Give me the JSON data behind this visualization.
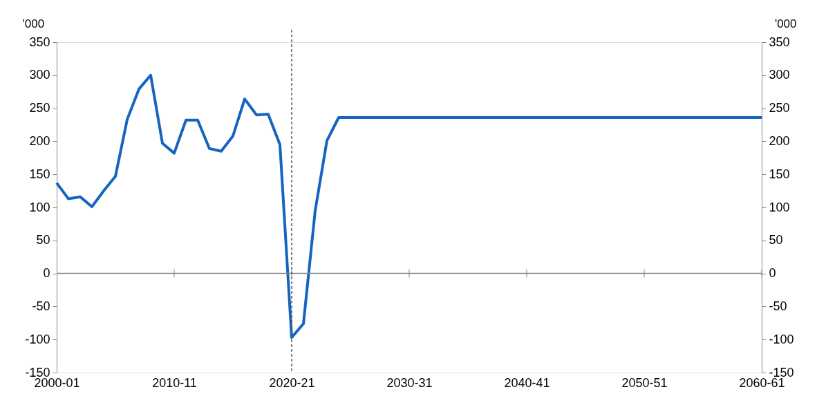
{
  "chart_data": {
    "type": "line",
    "categories": [
      "2000-01",
      null,
      null,
      null,
      null,
      null,
      null,
      null,
      null,
      null,
      "2010-11",
      null,
      null,
      null,
      null,
      null,
      null,
      null,
      null,
      null,
      "2020-21",
      null,
      null,
      null,
      null,
      null,
      null,
      null,
      null,
      null,
      "2030-31",
      null,
      null,
      null,
      null,
      null,
      null,
      null,
      null,
      null,
      "2040-41",
      null,
      null,
      null,
      null,
      null,
      null,
      null,
      null,
      null,
      "2050-51",
      null,
      null,
      null,
      null,
      null,
      null,
      null,
      null,
      null,
      "2060-61"
    ],
    "series": [
      {
        "color": "#1565c0",
        "values": [
          137,
          113,
          116,
          101,
          125,
          147,
          233,
          279,
          300,
          197,
          182,
          232,
          232,
          189,
          185,
          208,
          264,
          240,
          241,
          195,
          -97,
          -76,
          95,
          201,
          236,
          236,
          236,
          236,
          236,
          236,
          236,
          236,
          236,
          236,
          236,
          236,
          236,
          236,
          236,
          236,
          236,
          236,
          236,
          236,
          236,
          236,
          236,
          236,
          236,
          236,
          236,
          236,
          236,
          236,
          236,
          236,
          236,
          236,
          236,
          236,
          236
        ]
      }
    ],
    "ylabel": "'000",
    "y2label": "'000",
    "ylim": [
      -150,
      350
    ],
    "yticks": [
      -150,
      -100,
      -50,
      0,
      50,
      100,
      150,
      200,
      250,
      300,
      350
    ],
    "y2lim": [
      -150,
      350
    ],
    "y2ticks": [
      -150,
      -100,
      -50,
      0,
      50,
      100,
      150,
      200,
      250,
      300,
      350
    ],
    "ref_lines": [
      {
        "axis": "x",
        "value": "2020-21",
        "color": "#555555",
        "line_style": "dashed"
      }
    ],
    "grid": false,
    "marker": "none",
    "line_style": "solid"
  }
}
